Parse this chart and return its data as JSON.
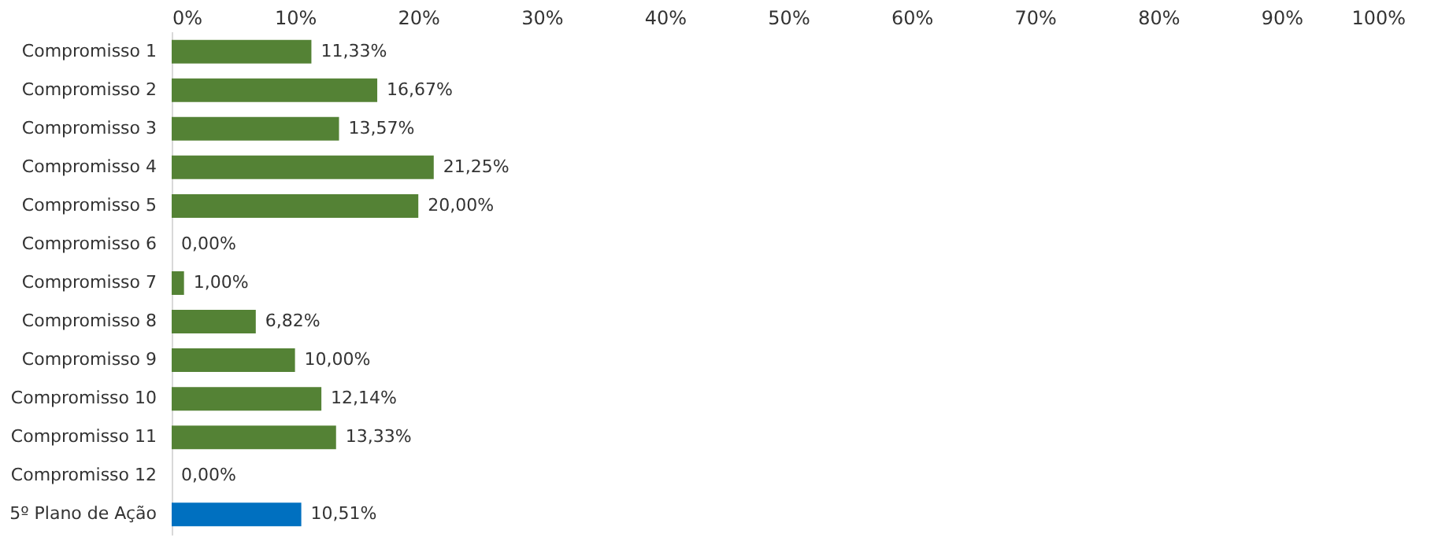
{
  "chart_data": {
    "type": "bar",
    "orientation": "horizontal",
    "categories": [
      "Compromisso 1",
      "Compromisso 2",
      "Compromisso 3",
      "Compromisso 4",
      "Compromisso 5",
      "Compromisso 6",
      "Compromisso 7",
      "Compromisso 8",
      "Compromisso 9",
      "Compromisso 10",
      "Compromisso 11",
      "Compromisso 12",
      "5º Plano de Ação"
    ],
    "values": [
      11.33,
      16.67,
      13.57,
      21.25,
      20.0,
      0.0,
      1.0,
      6.82,
      10.0,
      12.14,
      13.33,
      0.0,
      10.51
    ],
    "colors": [
      "#548235",
      "#548235",
      "#548235",
      "#548235",
      "#548235",
      "#548235",
      "#548235",
      "#548235",
      "#548235",
      "#548235",
      "#548235",
      "#548235",
      "#0070c0"
    ],
    "value_labels": [
      "11,33%",
      "16,67%",
      "13,57%",
      "21,25%",
      "20,00%",
      "0,00%",
      "1,00%",
      "6,82%",
      "10,00%",
      "12,14%",
      "13,33%",
      "0,00%",
      "10,51%"
    ],
    "xlim": [
      0,
      100
    ],
    "xticks": [
      {
        "value": 0,
        "label": "0%"
      },
      {
        "value": 10,
        "label": "10%"
      },
      {
        "value": 20,
        "label": "20%"
      },
      {
        "value": 30,
        "label": "30%"
      },
      {
        "value": 40,
        "label": "40%"
      },
      {
        "value": 50,
        "label": "50%"
      },
      {
        "value": 60,
        "label": "60%"
      },
      {
        "value": 70,
        "label": "70%"
      },
      {
        "value": 80,
        "label": "80%"
      },
      {
        "value": 90,
        "label": "90%"
      },
      {
        "value": 100,
        "label": "100%"
      }
    ],
    "grid": false
  }
}
